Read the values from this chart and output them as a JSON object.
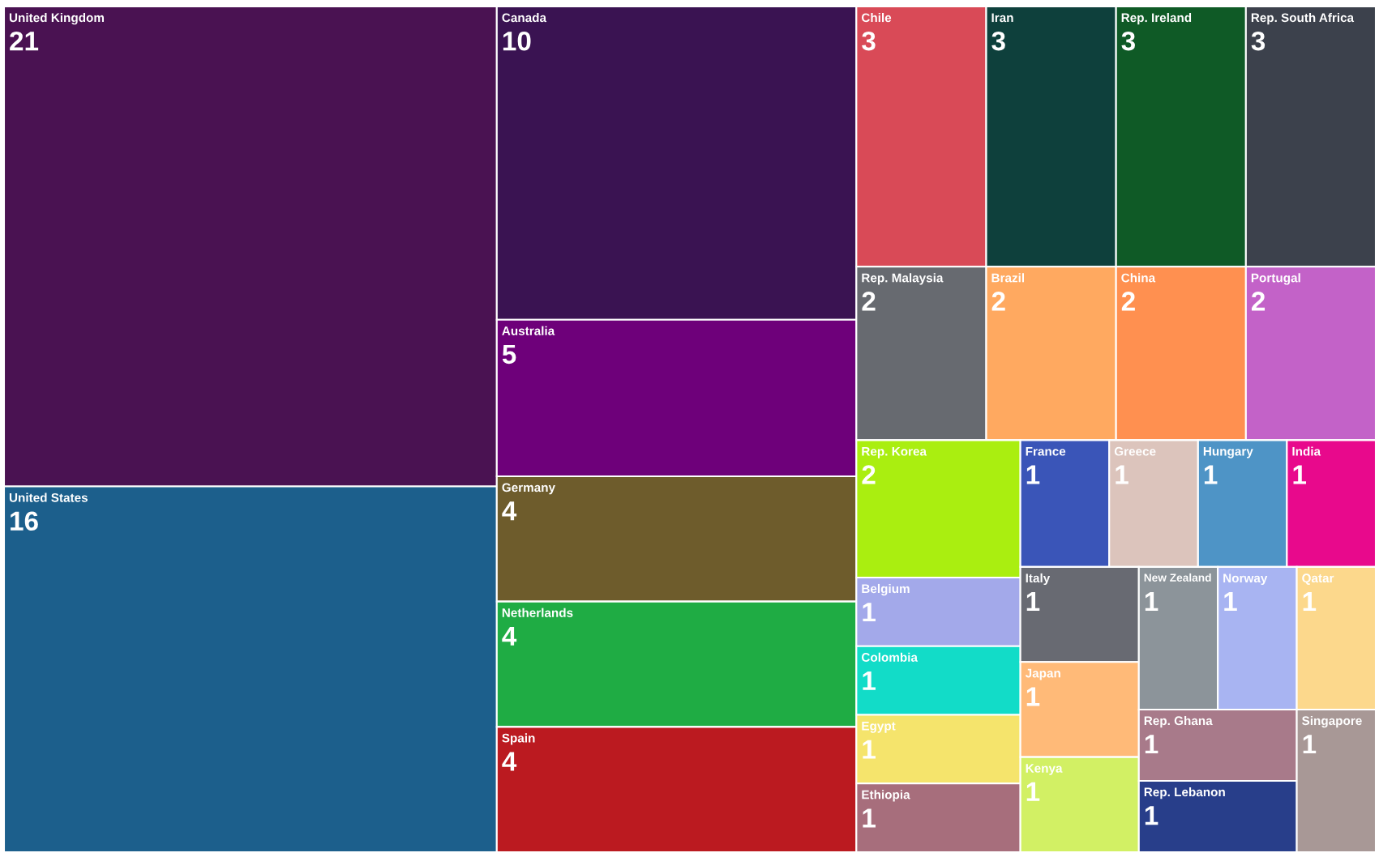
{
  "chart_data": {
    "type": "other",
    "data_labels": true,
    "categories": [
      "United Kingdom",
      "United States",
      "Canada",
      "Australia",
      "Germany",
      "Netherlands",
      "Spain",
      "Chile",
      "Iran",
      "Rep. Ireland",
      "Rep. South Africa",
      "Rep. Malaysia",
      "Brazil",
      "China",
      "Portugal",
      "Rep. Korea",
      "Belgium",
      "Colombia",
      "Egypt",
      "Ethiopia",
      "France",
      "Greece",
      "Hungary",
      "India",
      "Italy",
      "Japan",
      "Kenya",
      "New Zealand",
      "Norway",
      "Qatar",
      "Rep. Ghana",
      "Rep. Lebanon",
      "Singapore"
    ],
    "values": [
      21,
      16,
      10,
      5,
      4,
      4,
      4,
      3,
      3,
      3,
      3,
      2,
      2,
      2,
      2,
      2,
      1,
      1,
      1,
      1,
      1,
      1,
      1,
      1,
      1,
      1,
      1,
      1,
      1,
      1,
      1,
      1,
      1
    ],
    "colors": [
      "#4a1252",
      "#1c5f8c",
      "#3a1352",
      "#6e007a",
      "#6e5c2c",
      "#1fac44",
      "#bb1a20",
      "#d94a57",
      "#0e403c",
      "#0f5a26",
      "#3c414c",
      "#676a70",
      "#ffa960",
      "#ff9050",
      "#c362c8",
      "#aaee10",
      "#a3a9ea",
      "#12dcc8",
      "#f5e46c",
      "#a76e7c",
      "#3a55b8",
      "#dcc4bc",
      "#4e94c6",
      "#e8098c",
      "#686a72",
      "#ffba78",
      "#d2f064",
      "#8c949a",
      "#a8b4f2",
      "#fcd88c",
      "#a87a8a",
      "#283e8a",
      "#a89896"
    ]
  }
}
